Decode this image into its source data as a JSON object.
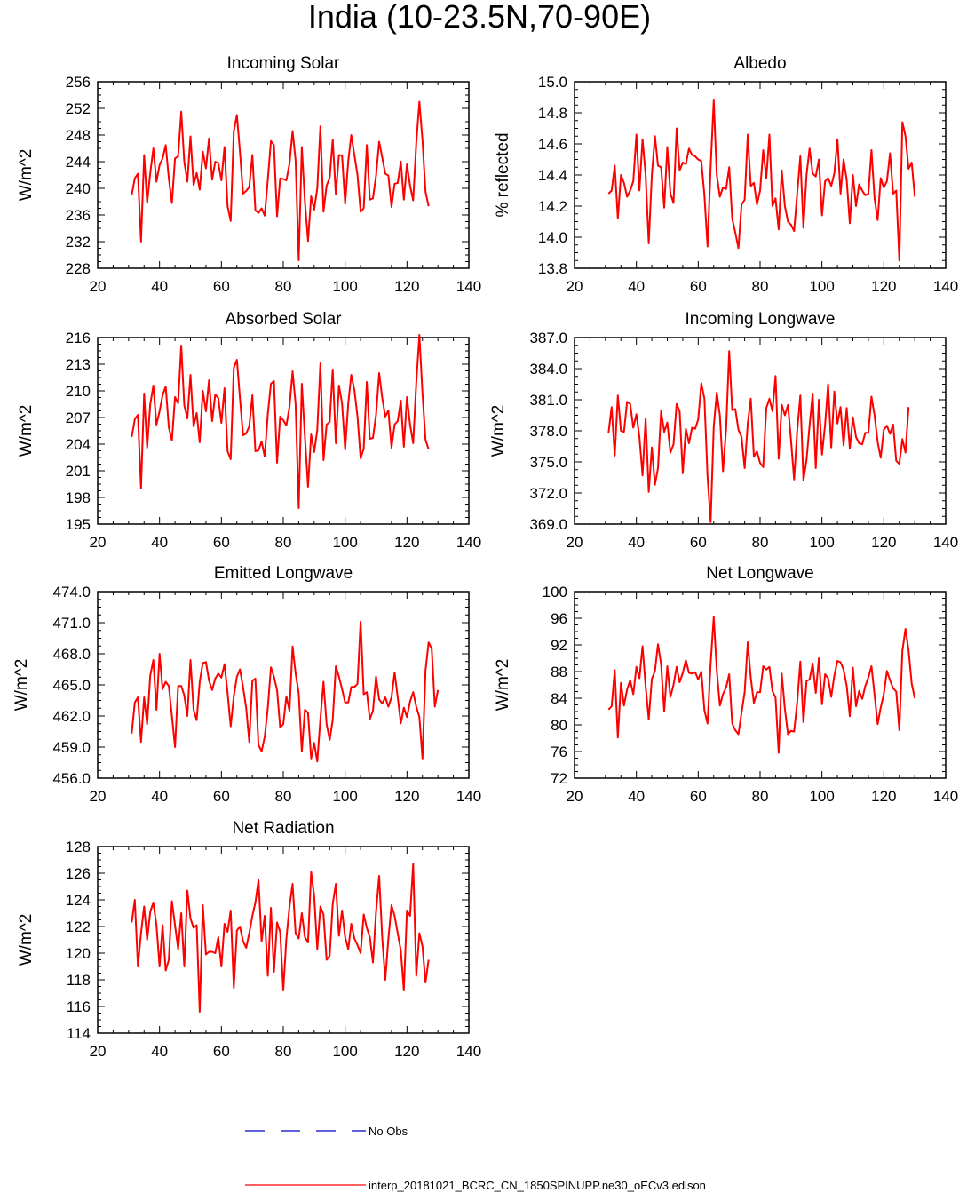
{
  "title": "India (10-23.5N,70-90E)",
  "colors": {
    "series": "#ff0000",
    "obs": "#0000cc",
    "axis": "#000000"
  },
  "legend": {
    "obs_label": "No Obs",
    "model_label": "interp_20181021_BCRC_CN_1850SPINUPP.ne30_oECv3.edison"
  },
  "chart_data": [
    {
      "id": "incoming-solar",
      "type": "line",
      "title": "Incoming Solar",
      "ylabel": "W/m^2",
      "xlim": [
        20,
        140
      ],
      "xticks": [
        20,
        40,
        60,
        80,
        100,
        120,
        140
      ],
      "ylim": [
        228,
        256
      ],
      "yticks": [
        "228",
        "232",
        "236",
        "240",
        "244",
        "248",
        "252",
        "256"
      ],
      "x_start": 31,
      "values": [
        239,
        241.5,
        242.2,
        232,
        245,
        237.8,
        242.3,
        246,
        241,
        243.5,
        244.5,
        246.5,
        241.5,
        237.8,
        244.5,
        244.8,
        251.5,
        244,
        241,
        247.8,
        240.5,
        242.3,
        239.8,
        245.5,
        243,
        247.5,
        241.3,
        244,
        243.8,
        241.2,
        246.2,
        237.3,
        235.1,
        248.6,
        251,
        245.5,
        239.2,
        239.6,
        240.2,
        245,
        236.7,
        236.3,
        237,
        235.9,
        241.3,
        247.1,
        246.5,
        235.8,
        241.5,
        241.4,
        241.2,
        243.7,
        248.6,
        244.2,
        229.2,
        246.2,
        238,
        232.1,
        238.8,
        236.8,
        240,
        249.3,
        236.5,
        240.4,
        241.6,
        247.3,
        239.1,
        245,
        244.9,
        237.7,
        244.1,
        248,
        245,
        242,
        236.5,
        237,
        246.5,
        238.3,
        238.5,
        241.9,
        247,
        244.6,
        242.2,
        241.9,
        237.2,
        240.7,
        240.8,
        244,
        238.3,
        243.6,
        240.4,
        238.2,
        246.8,
        253,
        247.2,
        239.5,
        237.3
      ]
    },
    {
      "id": "albedo",
      "type": "line",
      "title": "Albedo",
      "ylabel": "% reflected",
      "xlim": [
        20,
        140
      ],
      "xticks": [
        20,
        40,
        60,
        80,
        100,
        120,
        140
      ],
      "ylim": [
        13.8,
        15.0
      ],
      "yticks": [
        "13.8",
        "14.0",
        "14.2",
        "14.4",
        "14.6",
        "14.8",
        "15.0"
      ],
      "x_start": 31,
      "values": [
        14.28,
        14.3,
        14.46,
        14.12,
        14.4,
        14.35,
        14.26,
        14.3,
        14.36,
        14.66,
        14.3,
        14.63,
        14.4,
        13.96,
        14.4,
        14.65,
        14.46,
        14.45,
        14.19,
        14.58,
        14.28,
        14.22,
        14.7,
        14.43,
        14.48,
        14.47,
        14.57,
        14.53,
        14.52,
        14.5,
        14.49,
        14.27,
        13.94,
        14.45,
        14.88,
        14.4,
        14.26,
        14.32,
        14.31,
        14.45,
        14.12,
        14.03,
        13.93,
        14.21,
        14.24,
        14.66,
        14.33,
        14.35,
        14.21,
        14.3,
        14.56,
        14.38,
        14.66,
        14.2,
        14.25,
        14.05,
        14.43,
        14.2,
        14.1,
        14.08,
        14.04,
        14.28,
        14.52,
        14.06,
        14.4,
        14.57,
        14.41,
        14.39,
        14.5,
        14.14,
        14.36,
        14.38,
        14.33,
        14.41,
        14.63,
        14.28,
        14.5,
        14.37,
        14.09,
        14.4,
        14.2,
        14.34,
        14.3,
        14.27,
        14.28,
        14.56,
        14.25,
        14.11,
        14.38,
        14.32,
        14.36,
        14.54,
        14.28,
        14.3,
        13.85,
        14.74,
        14.65,
        14.44,
        14.48,
        14.26
      ]
    },
    {
      "id": "absorbed-solar",
      "type": "line",
      "title": "Absorbed Solar",
      "ylabel": "W/m^2",
      "xlim": [
        20,
        140
      ],
      "xticks": [
        20,
        40,
        60,
        80,
        100,
        120,
        140
      ],
      "ylim": [
        195,
        216
      ],
      "yticks": [
        "195",
        "198",
        "201",
        "204",
        "207",
        "210",
        "213",
        "216"
      ],
      "x_start": 31,
      "values": [
        204.8,
        206.8,
        207.3,
        199,
        209.7,
        203.6,
        208.5,
        210.6,
        206.2,
        207.7,
        209.5,
        210.5,
        205.9,
        204.4,
        209.3,
        208.6,
        215.1,
        208.4,
        206.9,
        211.8,
        206,
        207.5,
        204.2,
        210,
        207.7,
        211.2,
        206.6,
        209.6,
        209.2,
        206.4,
        210.3,
        203.2,
        202.3,
        212.6,
        213.5,
        209.2,
        205,
        205.2,
        206,
        209.5,
        203.2,
        203.3,
        204.3,
        202.6,
        207.4,
        210.8,
        211.1,
        201.9,
        207.1,
        206.7,
        206.1,
        208.2,
        212.2,
        208.5,
        196.8,
        210.8,
        204.8,
        199.2,
        205.1,
        203.1,
        205.6,
        213.1,
        202.2,
        206.2,
        206.5,
        212.4,
        204.1,
        210.6,
        208.6,
        203.4,
        208.6,
        211.8,
        210.1,
        207.1,
        202.4,
        203.5,
        211,
        204.6,
        204.7,
        207.3,
        212,
        209.2,
        207.1,
        207.8,
        203.6,
        206.2,
        206.6,
        208.9,
        203.7,
        209.3,
        206.2,
        204.1,
        210.9,
        216.3,
        209.7,
        204.5,
        203.4
      ]
    },
    {
      "id": "incoming-longwave",
      "type": "line",
      "title": "Incoming Longwave",
      "ylabel": "W/m^2",
      "xlim": [
        20,
        140
      ],
      "xticks": [
        20,
        40,
        60,
        80,
        100,
        120,
        140
      ],
      "ylim": [
        369,
        387
      ],
      "yticks": [
        "369.0",
        "372.0",
        "375.0",
        "378.0",
        "381.0",
        "384.0",
        "387.0"
      ],
      "x_start": 31,
      "values": [
        377.8,
        380.3,
        375.6,
        381.4,
        378,
        377.9,
        380.8,
        380.6,
        378.3,
        379.6,
        377.4,
        373.7,
        379.2,
        372.1,
        376.4,
        372.8,
        374.4,
        379.9,
        377.9,
        378.8,
        375.9,
        376.7,
        380.6,
        379.9,
        373.9,
        378.2,
        376.8,
        378.3,
        378.2,
        379.1,
        382.6,
        381.1,
        373.6,
        369.2,
        378.4,
        381.7,
        379.5,
        374.1,
        378.1,
        385.7,
        380,
        380.1,
        378.1,
        377.4,
        374.4,
        378.7,
        381.1,
        375.5,
        376,
        374.9,
        374.5,
        380.2,
        381.1,
        379.9,
        383.3,
        375.3,
        380.5,
        379.5,
        380.5,
        377.1,
        373.3,
        378,
        381.4,
        373.2,
        375.2,
        378.5,
        381.6,
        374.4,
        381,
        375.7,
        378.6,
        382.5,
        376.4,
        381.8,
        378.7,
        380.3,
        376.6,
        380.2,
        376.3,
        379.3,
        377.4,
        376.8,
        376.7,
        377.8,
        377.8,
        381.3,
        379.5,
        376.9,
        375.4,
        378.1,
        378.5,
        377.7,
        378.6,
        375.1,
        374.8,
        377.2,
        375.9,
        380.3
      ]
    },
    {
      "id": "emitted-longwave",
      "type": "line",
      "title": "Emitted Longwave",
      "ylabel": "W/m^2",
      "xlim": [
        20,
        140
      ],
      "xticks": [
        20,
        40,
        60,
        80,
        100,
        120,
        140
      ],
      "ylim": [
        456,
        474
      ],
      "yticks": [
        "456.0",
        "459.0",
        "462.0",
        "465.0",
        "468.0",
        "471.0",
        "474.0"
      ],
      "x_start": 31,
      "values": [
        460.3,
        463.3,
        463.8,
        459.5,
        463.8,
        461.2,
        465.9,
        467.4,
        462.6,
        468,
        464.6,
        465.3,
        464.9,
        462,
        459,
        464.9,
        464.9,
        464,
        462,
        467.4,
        462.6,
        461.6,
        465.3,
        467.1,
        467.2,
        465.4,
        464.5,
        465.6,
        466.1,
        465.7,
        467,
        464.2,
        461,
        463.9,
        465.8,
        466.5,
        464.8,
        462.8,
        459.5,
        465.4,
        465.6,
        459.2,
        458.6,
        460,
        462.8,
        466.7,
        465.8,
        464.5,
        460.9,
        461.2,
        463.9,
        462.5,
        468.7,
        466.1,
        464.2,
        458.6,
        462.6,
        462.3,
        457.9,
        459.4,
        457.6,
        461.7,
        465.3,
        461.2,
        459.7,
        461.6,
        466.8,
        465.8,
        464.6,
        463.3,
        463.3,
        464.8,
        464.8,
        465.1,
        471.1,
        464.1,
        464.3,
        461.7,
        462.5,
        465.8,
        463.6,
        463.2,
        463.8,
        462.9,
        463.8,
        466.2,
        463.8,
        461.3,
        462.8,
        461.9,
        463.4,
        464.3,
        462.9,
        461.9,
        457.9,
        466.4,
        469.1,
        468.5,
        462.9,
        464.5
      ]
    },
    {
      "id": "net-longwave",
      "type": "line",
      "title": "Net Longwave",
      "ylabel": "W/m^2",
      "xlim": [
        20,
        140
      ],
      "xticks": [
        20,
        40,
        60,
        80,
        100,
        120,
        140
      ],
      "ylim": [
        72,
        100
      ],
      "yticks": [
        "72",
        "76",
        "80",
        "84",
        "88",
        "92",
        "96",
        "100"
      ],
      "x_start": 31,
      "values": [
        82.3,
        82.8,
        88.2,
        78.1,
        86.3,
        82.9,
        85.3,
        86.7,
        84.6,
        88.7,
        87,
        91.8,
        85.8,
        80.8,
        86.9,
        88.1,
        92.1,
        89.1,
        82,
        88.8,
        84.2,
        86,
        88.7,
        86.4,
        87.8,
        89.7,
        87.8,
        87.7,
        87.9,
        86.8,
        88,
        82.2,
        80.2,
        89.2,
        96.2,
        88.2,
        82.9,
        84.6,
        85.6,
        87.6,
        80.2,
        79.2,
        78.6,
        81.8,
        84.9,
        92.4,
        87.1,
        83.3,
        84.9,
        84.9,
        88.8,
        88.3,
        88.7,
        85.1,
        84.1,
        75.8,
        87.7,
        82.4,
        78.6,
        79.1,
        79,
        83.4,
        89.5,
        80.4,
        86.6,
        86.8,
        89.2,
        84.8,
        90,
        83.1,
        87.6,
        87,
        84.2,
        87.4,
        89.6,
        89.4,
        88.3,
        85.9,
        81.3,
        88.6,
        82.8,
        85.1,
        83.9,
        85.8,
        87.1,
        88.8,
        84.5,
        80.1,
        82.6,
        84.6,
        88.1,
        86.7,
        85.5,
        85,
        79.2,
        91.1,
        94.4,
        91.2,
        86.2,
        84
      ]
    },
    {
      "id": "net-radiation",
      "type": "line",
      "title": "Net Radiation",
      "ylabel": "W/m^2",
      "xlim": [
        20,
        140
      ],
      "xticks": [
        20,
        40,
        60,
        80,
        100,
        120,
        140
      ],
      "ylim": [
        114,
        128
      ],
      "yticks": [
        "114",
        "116",
        "118",
        "120",
        "122",
        "124",
        "126",
        "128"
      ],
      "x_start": 31,
      "values": [
        122.3,
        124,
        119,
        121.5,
        123.5,
        121,
        123.1,
        123.8,
        122.1,
        119,
        122.1,
        118.7,
        119.5,
        123.9,
        122.1,
        120.3,
        123,
        119,
        124.7,
        122.6,
        121.9,
        122.1,
        115.6,
        123.6,
        119.9,
        120.1,
        120.1,
        120,
        121.2,
        119,
        122.2,
        121.6,
        123.2,
        117.4,
        121.7,
        122,
        120.9,
        120.4,
        121.5,
        122.8,
        123.8,
        125.5,
        120.9,
        122.8,
        118.3,
        123.4,
        118.6,
        122.3,
        121.6,
        117.2,
        121.1,
        123.5,
        125.2,
        121.5,
        121.1,
        123,
        121.2,
        120.8,
        126.1,
        124.3,
        120.3,
        123.5,
        122.9,
        119.5,
        119.8,
        123.7,
        125.2,
        121.3,
        123.2,
        121.2,
        120.3,
        122.2,
        121.1,
        120.6,
        120,
        122.9,
        121.9,
        121.2,
        119.3,
        123.1,
        125.8,
        121.1,
        118,
        121.1,
        123.6,
        122.8,
        121.5,
        120.2,
        117.2,
        123.2,
        122.8,
        126.7,
        118.3,
        121.5,
        120.5,
        117.8,
        119.5
      ]
    }
  ]
}
